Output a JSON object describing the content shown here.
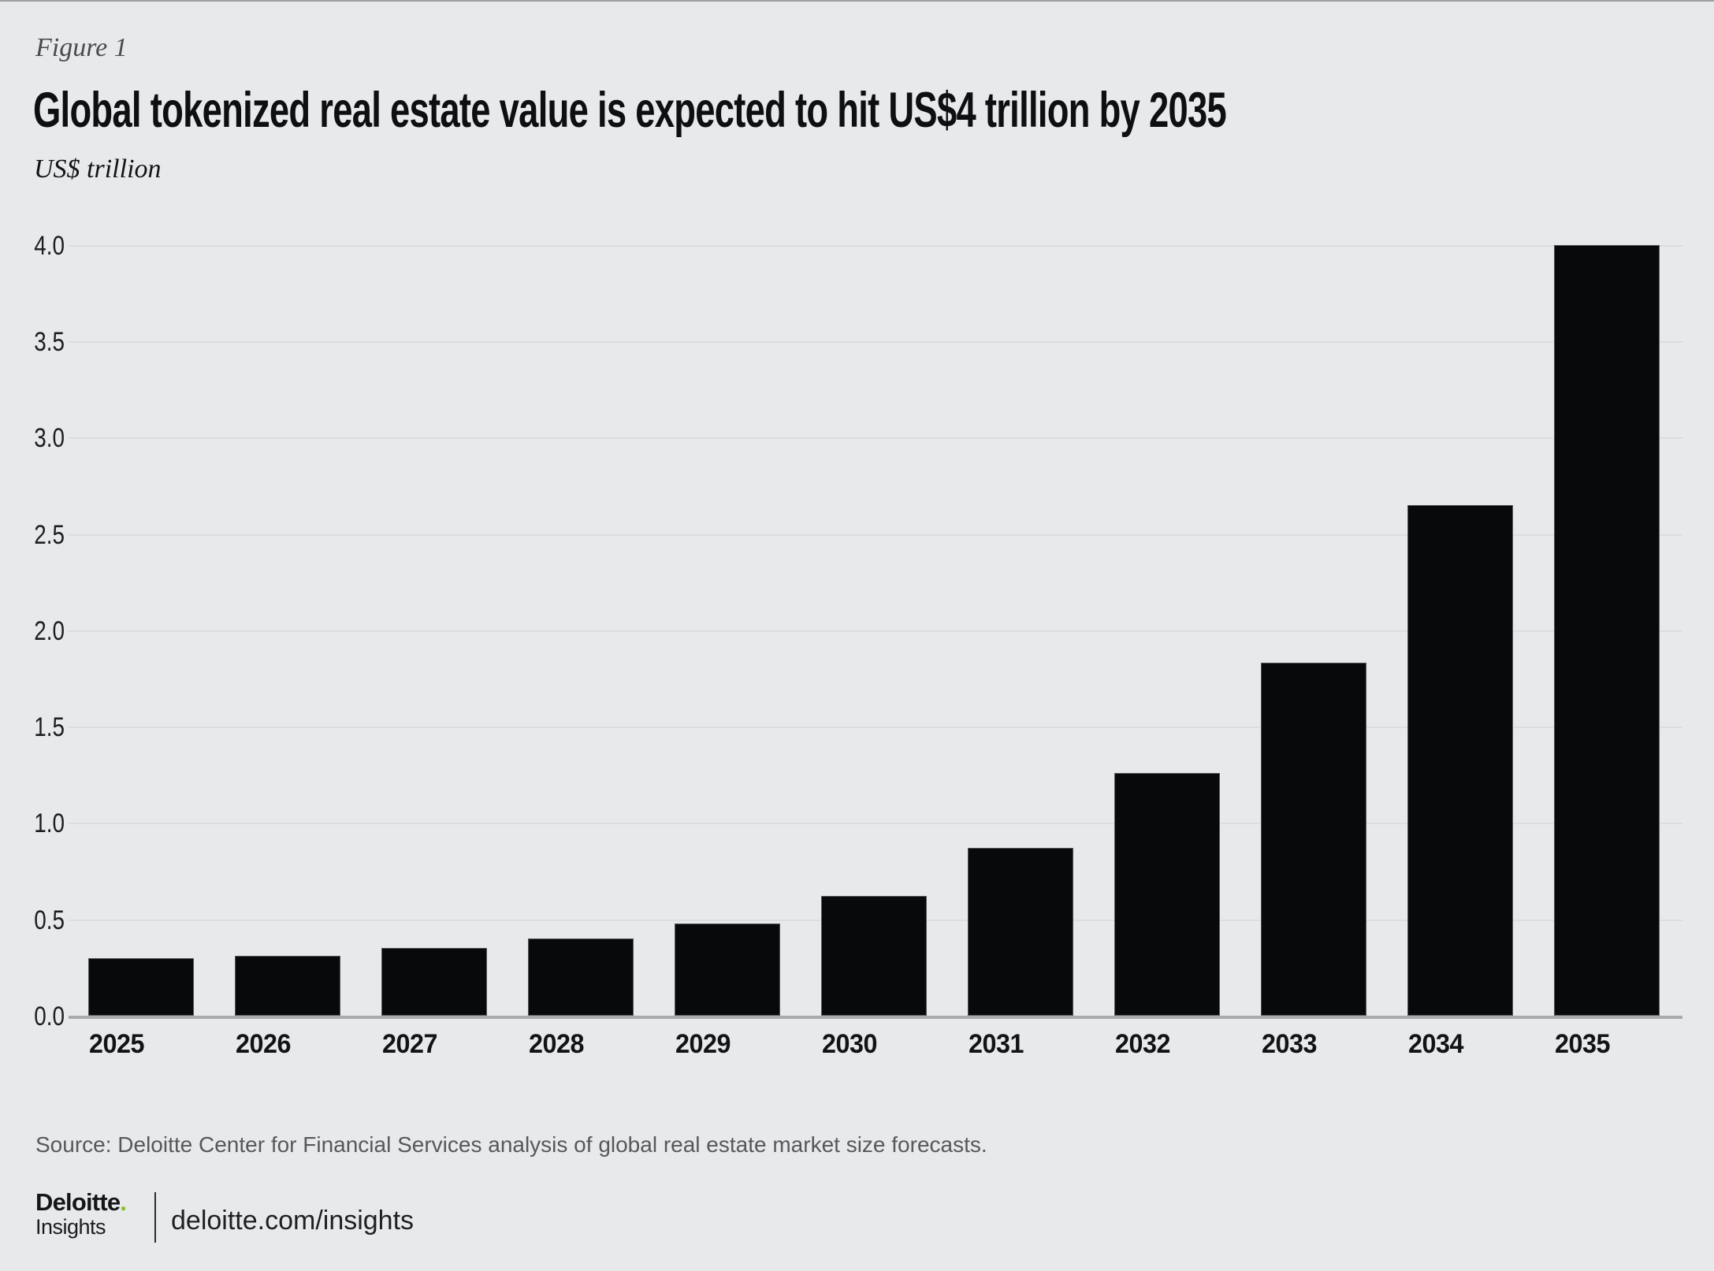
{
  "page": {
    "figure_label": "Figure 1",
    "title": "Global tokenized real estate value is expected to hit US$4 trillion by 2035",
    "unit_label": "US$ trillion",
    "source_note": "Source: Deloitte Center for Financial Services analysis of global real estate market size forecasts.",
    "footer": {
      "brand": "Deloitte",
      "brand_dot": ".",
      "brand_sub": "Insights",
      "site_link": "deloitte.com/insights"
    }
  },
  "colors": {
    "background": "#e8e9ea",
    "bar": "#07090a",
    "bar_edge": "rgba(150,153,155,0.55)",
    "axis_line": "#a9aaab",
    "gridline": "#dcddde",
    "brand_green": "#86bc25"
  },
  "chart_data": {
    "type": "bar",
    "title": "Global tokenized real estate value is expected to hit US$4 trillion by 2035",
    "xlabel": "",
    "ylabel": "US$ trillion",
    "categories": [
      "2025",
      "2026",
      "2027",
      "2028",
      "2029",
      "2030",
      "2031",
      "2032",
      "2033",
      "2034",
      "2035"
    ],
    "values": [
      0.3,
      0.31,
      0.35,
      0.4,
      0.48,
      0.62,
      0.87,
      1.26,
      1.83,
      2.65,
      4.0
    ],
    "ylim": [
      0,
      4.0
    ],
    "yticks": [
      0.0,
      0.5,
      1.0,
      1.5,
      2.0,
      2.5,
      3.0,
      3.5,
      4.0
    ],
    "grid": "horizontal",
    "legend": "none",
    "bar_color": "#07090a"
  }
}
